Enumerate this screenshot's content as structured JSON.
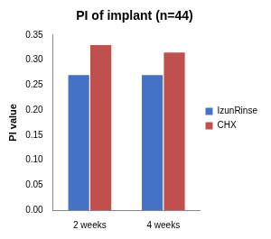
{
  "chart_data": {
    "type": "bar",
    "title": "PI of implant (n=44)",
    "y_label": "PI value",
    "categories": [
      "2 weeks",
      "4 weeks"
    ],
    "series": [
      {
        "name": "IzunRinse",
        "color": "#4472c4",
        "values": [
          0.27,
          0.27
        ]
      },
      {
        "name": "CHX",
        "color": "#c0504d",
        "values": [
          0.33,
          0.315
        ]
      }
    ],
    "ylim": [
      0,
      0.35
    ],
    "yticks": [
      {
        "value": 0,
        "label": "0.00"
      },
      {
        "value": 0.05,
        "label": "0.05"
      },
      {
        "value": 0.1,
        "label": "0.10"
      },
      {
        "value": 0.15,
        "label": "0.15"
      },
      {
        "value": 0.2,
        "label": "0.20"
      },
      {
        "value": 0.25,
        "label": "0.25"
      },
      {
        "value": 0.3,
        "label": "0.30"
      },
      {
        "value": 0.35,
        "label": "0.35"
      }
    ],
    "grid": false,
    "legend": "right"
  }
}
